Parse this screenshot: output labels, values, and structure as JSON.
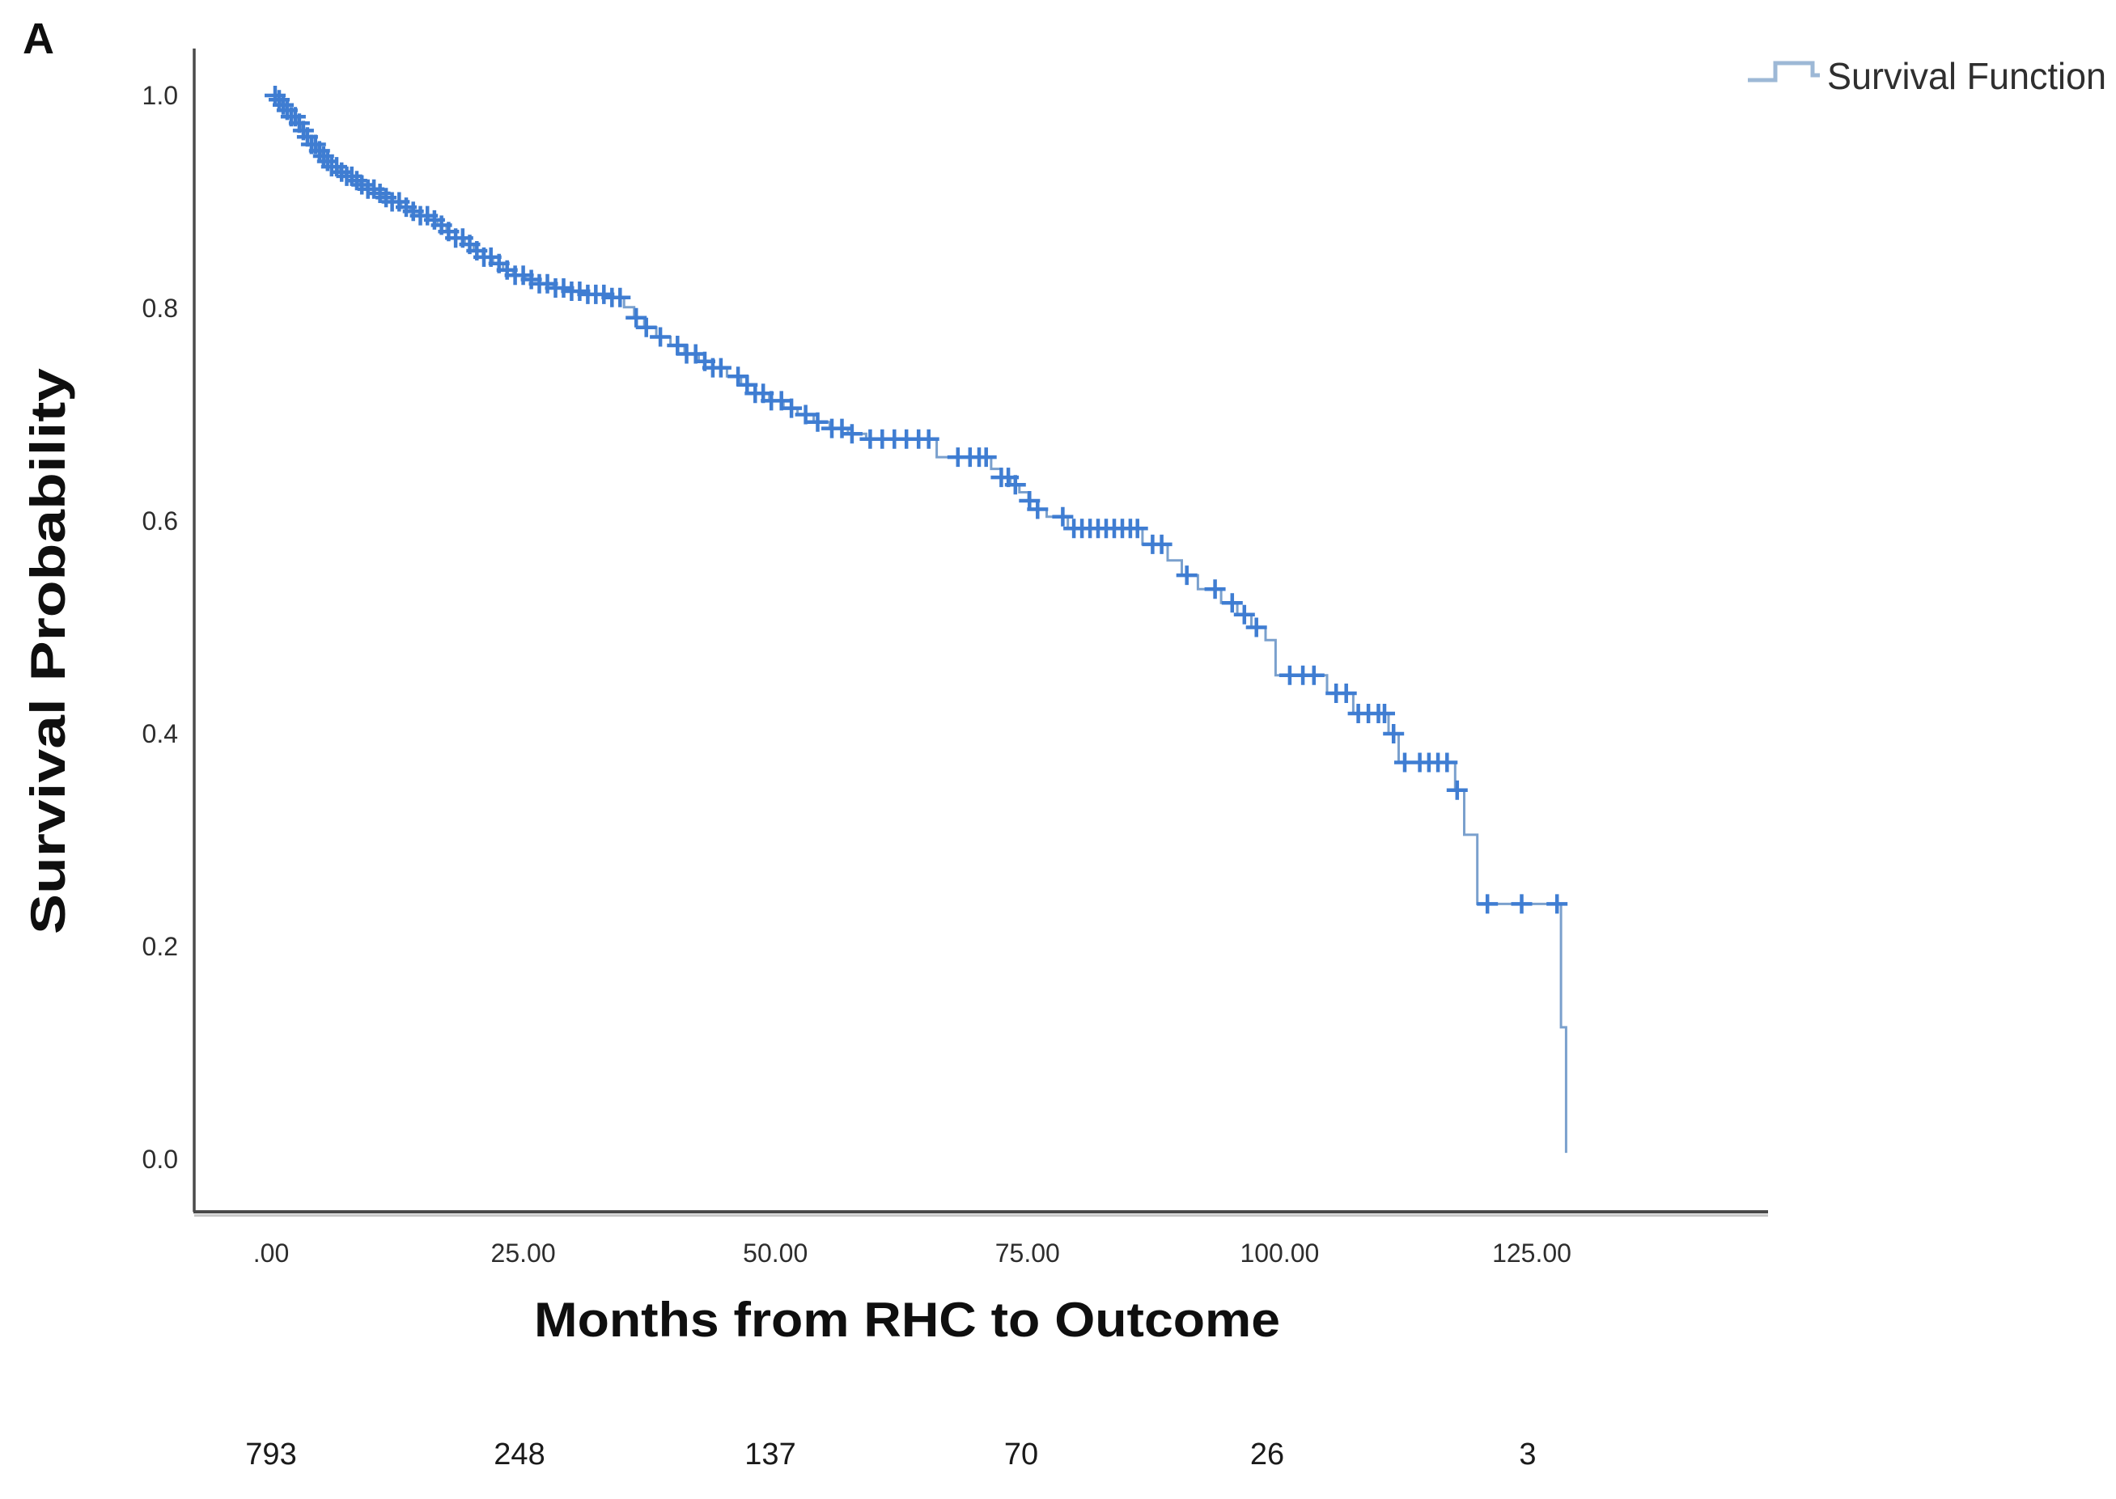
{
  "panel_label": "A",
  "legend": {
    "label": "Survival Function",
    "icon": "step-line-icon",
    "icon_color": "#9db8d6",
    "position": "top-right"
  },
  "chart_data": {
    "type": "line",
    "subtype": "kaplan-meier-step-function-with-censor-marks",
    "title": "",
    "xlabel": "Months from RHC to Outcome",
    "ylabel": "Survival Probability",
    "x_ticks": [
      ".00",
      "25.00",
      "50.00",
      "75.00",
      "100.00",
      "125.00"
    ],
    "x_tick_values": [
      0,
      25,
      50,
      75,
      100,
      125
    ],
    "y_ticks": [
      "0.0",
      "0.2",
      "0.4",
      "0.6",
      "0.8",
      "1.0"
    ],
    "y_tick_values": [
      0,
      0.2,
      0.4,
      0.6,
      0.8,
      1.0
    ],
    "xlim": [
      -7.6,
      148.5
    ],
    "ylim": [
      -0.049,
      1.044
    ],
    "grid": false,
    "legend_position": "top-right",
    "colors": {
      "censor_mark": "#3f7dd2",
      "step_line": "#7aa0cd",
      "axis": "#4a4a4a"
    },
    "series": [
      {
        "name": "Survival Function",
        "steps": [
          [
            0,
            1.0
          ],
          [
            0.5,
            0.996
          ],
          [
            1,
            0.991
          ],
          [
            1.5,
            0.986
          ],
          [
            2,
            0.98
          ],
          [
            2.5,
            0.974
          ],
          [
            3,
            0.967
          ],
          [
            3.5,
            0.961
          ],
          [
            4,
            0.954
          ],
          [
            4.5,
            0.948
          ],
          [
            5,
            0.943
          ],
          [
            5.5,
            0.938
          ],
          [
            6,
            0.933
          ],
          [
            6.7,
            0.928
          ],
          [
            7.4,
            0.924
          ],
          [
            8.1,
            0.92
          ],
          [
            8.8,
            0.916
          ],
          [
            9.5,
            0.912
          ],
          [
            10.3,
            0.908
          ],
          [
            11.1,
            0.904
          ],
          [
            12,
            0.9
          ],
          [
            12.9,
            0.895
          ],
          [
            13.8,
            0.891
          ],
          [
            14.7,
            0.887
          ],
          [
            15.6,
            0.883
          ],
          [
            16.5,
            0.878
          ],
          [
            17.4,
            0.872
          ],
          [
            18.3,
            0.866
          ],
          [
            19.2,
            0.86
          ],
          [
            20.1,
            0.854
          ],
          [
            21,
            0.848
          ],
          [
            22,
            0.842
          ],
          [
            23,
            0.836
          ],
          [
            24,
            0.831
          ],
          [
            25.2,
            0.827
          ],
          [
            26.6,
            0.823
          ],
          [
            28,
            0.819
          ],
          [
            29.6,
            0.816
          ],
          [
            31.4,
            0.813
          ],
          [
            33.4,
            0.81
          ],
          [
            35,
            0.801
          ],
          [
            36,
            0.791
          ],
          [
            37,
            0.782
          ],
          [
            38.2,
            0.773
          ],
          [
            39.6,
            0.765
          ],
          [
            41,
            0.757
          ],
          [
            42.4,
            0.75
          ],
          [
            43.8,
            0.744
          ],
          [
            45.2,
            0.736
          ],
          [
            46.6,
            0.728
          ],
          [
            48,
            0.72
          ],
          [
            49.4,
            0.713
          ],
          [
            50.8,
            0.706
          ],
          [
            52.2,
            0.7
          ],
          [
            53.8,
            0.693
          ],
          [
            55.4,
            0.687
          ],
          [
            57.2,
            0.682
          ],
          [
            59,
            0.677
          ],
          [
            66,
            0.66
          ],
          [
            71.4,
            0.649
          ],
          [
            72.4,
            0.641
          ],
          [
            73.3,
            0.634
          ],
          [
            74.2,
            0.627
          ],
          [
            75.1,
            0.619
          ],
          [
            76,
            0.611
          ],
          [
            76.9,
            0.604
          ],
          [
            79,
            0.593
          ],
          [
            86.4,
            0.578
          ],
          [
            88.9,
            0.563
          ],
          [
            90.3,
            0.549
          ],
          [
            91.9,
            0.536
          ],
          [
            94.2,
            0.523
          ],
          [
            95.8,
            0.512
          ],
          [
            97.2,
            0.5
          ],
          [
            98.6,
            0.488
          ],
          [
            99.6,
            0.455
          ],
          [
            104.7,
            0.438
          ],
          [
            107.3,
            0.419
          ],
          [
            110.8,
            0.4
          ],
          [
            111.8,
            0.373
          ],
          [
            117.4,
            0.347
          ],
          [
            118.3,
            0.305
          ],
          [
            119.6,
            0.24
          ],
          [
            127.9,
            0.124
          ],
          [
            128.4,
            0.006
          ]
        ],
        "censor_months": [
          0.4,
          0.8,
          1.2,
          1.6,
          2.0,
          2.4,
          2.8,
          3.2,
          3.6,
          4.0,
          4.4,
          4.8,
          5.2,
          5.6,
          6.0,
          6.5,
          7.0,
          7.5,
          8.0,
          8.5,
          9.0,
          9.6,
          10.2,
          10.8,
          11.4,
          12.0,
          12.7,
          13.4,
          14.1,
          14.8,
          15.5,
          16.2,
          16.9,
          17.6,
          18.3,
          19.0,
          19.7,
          20.4,
          21.1,
          21.8,
          22.6,
          23.4,
          24.2,
          25.0,
          25.8,
          26.6,
          27.4,
          28.2,
          29.0,
          29.8,
          30.6,
          31.4,
          32.2,
          33.0,
          33.8,
          34.6,
          36.2,
          37.2,
          38.6,
          40.3,
          41.2,
          42.1,
          43.0,
          43.8,
          44.6,
          46.3,
          47.2,
          48.0,
          48.8,
          49.6,
          50.6,
          51.6,
          53.0,
          54.2,
          55.6,
          56.6,
          57.6,
          59.4,
          60.6,
          61.8,
          63.0,
          64.2,
          65.2,
          68.1,
          69.3,
          70.2,
          70.9,
          72.4,
          73.1,
          73.8,
          75.2,
          76.0,
          78.5,
          79.6,
          80.4,
          81.2,
          82.0,
          82.8,
          83.6,
          84.4,
          85.2,
          85.9,
          87.4,
          88.3,
          90.8,
          93.6,
          95.3,
          96.5,
          97.7,
          101.0,
          102.3,
          103.4,
          105.6,
          106.6,
          107.8,
          108.8,
          109.8,
          110.4,
          111.3,
          112.4,
          113.9,
          114.8,
          115.7,
          116.6,
          117.6,
          120.6,
          124.0,
          127.5
        ]
      }
    ],
    "at_risk": {
      "values": [
        "793",
        "248",
        "137",
        "70",
        "26",
        "3"
      ],
      "months": [
        0,
        25,
        50,
        75,
        100,
        125
      ]
    }
  }
}
